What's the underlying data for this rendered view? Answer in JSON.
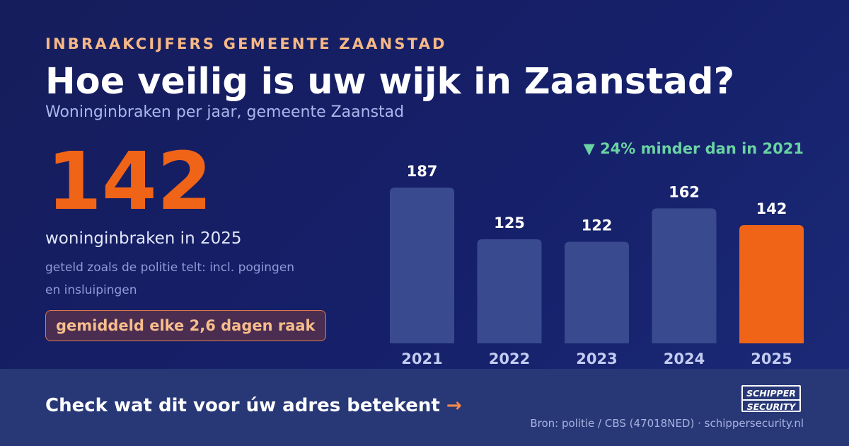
{
  "header": {
    "eyebrow": "INBRAAKCIJFERS GEMEENTE ZAANSTAD",
    "title": "Hoe veilig is uw wijk in Zaanstad?",
    "subtitle": "Woninginbraken per jaar, gemeente Zaanstad"
  },
  "highlight": {
    "number": "142",
    "caption": "woninginbraken in 2025",
    "note": "geteld zoals de politie telt: incl. pogingen en insluipingen",
    "pill": "gemiddeld elke 2,6 dagen raak",
    "delta": "▼ 24% minder dan in 2021"
  },
  "chart_data": {
    "type": "bar",
    "title": "",
    "xlabel": "",
    "ylabel": "",
    "categories": [
      "2021",
      "2022",
      "2023",
      "2024",
      "2025"
    ],
    "values": [
      187,
      125,
      122,
      162,
      142
    ],
    "highlight_category": "2025",
    "colors": {
      "default": "#3a4a8f",
      "highlight": "#f06418"
    },
    "grid": false,
    "ylim": [
      0,
      187
    ]
  },
  "footer": {
    "cta": "Check wat dit voor úw adres betekent",
    "cta_arrow": "→",
    "logo_top": "SCHIPPER",
    "logo_bottom": "SECURITY",
    "source": "Bron: politie / CBS (47018NED) · schippersecurity.nl"
  }
}
